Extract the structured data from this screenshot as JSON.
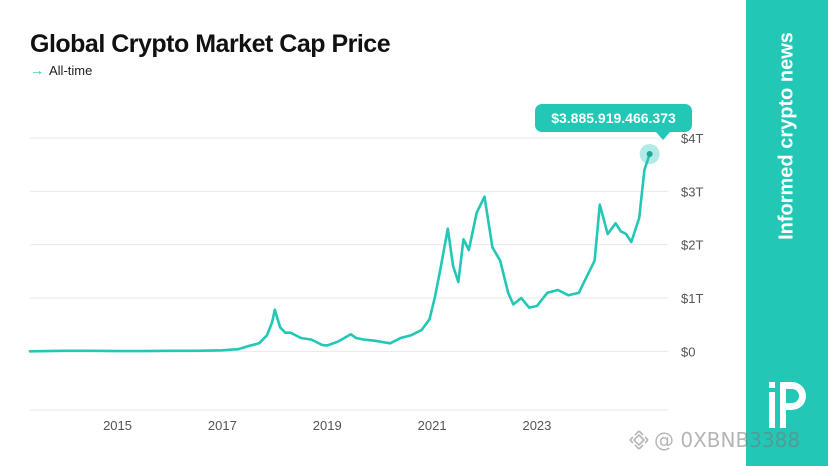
{
  "chart_data": {
    "type": "line",
    "title": "Global Crypto Market Cap Price",
    "subtitle": "All-time",
    "x_tick_labels": [
      "2015",
      "2017",
      "2019",
      "2021",
      "2023"
    ],
    "y_tick_labels": [
      "$0",
      "$1T",
      "$2T",
      "$3T",
      "$4T"
    ],
    "ylim": [
      -1.1,
      4.15
    ],
    "xlim": [
      2013.33,
      2025.5
    ],
    "grid": true,
    "last_value_label": "$3.885.919.466.373",
    "series": [
      {
        "color": "#22c7b5",
        "x": [
          2013.33,
          2014.0,
          2014.5,
          2015.0,
          2015.5,
          2016.0,
          2016.5,
          2017.0,
          2017.3,
          2017.5,
          2017.7,
          2017.85,
          2017.95,
          2018.0,
          2018.1,
          2018.2,
          2018.3,
          2018.5,
          2018.7,
          2018.9,
          2019.0,
          2019.2,
          2019.45,
          2019.55,
          2019.7,
          2019.9,
          2020.2,
          2020.4,
          2020.6,
          2020.8,
          2020.95,
          2021.05,
          2021.15,
          2021.3,
          2021.4,
          2021.5,
          2021.6,
          2021.7,
          2021.85,
          2022.0,
          2022.15,
          2022.3,
          2022.45,
          2022.55,
          2022.7,
          2022.85,
          2023.0,
          2023.2,
          2023.4,
          2023.6,
          2023.8,
          2023.95,
          2024.1,
          2024.2,
          2024.35,
          2024.5,
          2024.6,
          2024.7,
          2024.8,
          2024.95,
          2025.05,
          2025.15
        ],
        "y": [
          0.0,
          0.01,
          0.01,
          0.005,
          0.005,
          0.01,
          0.01,
          0.02,
          0.04,
          0.1,
          0.15,
          0.3,
          0.55,
          0.78,
          0.45,
          0.35,
          0.35,
          0.25,
          0.22,
          0.12,
          0.11,
          0.18,
          0.32,
          0.25,
          0.22,
          0.2,
          0.15,
          0.25,
          0.3,
          0.4,
          0.6,
          1.0,
          1.5,
          2.3,
          1.6,
          1.3,
          2.1,
          1.9,
          2.6,
          2.9,
          1.95,
          1.7,
          1.1,
          0.88,
          1.0,
          0.82,
          0.85,
          1.1,
          1.15,
          1.05,
          1.1,
          1.4,
          1.7,
          2.75,
          2.2,
          2.4,
          2.25,
          2.2,
          2.05,
          2.5,
          3.4,
          3.7
        ]
      }
    ]
  },
  "brand": {
    "tagline": "Informed crypto news",
    "accent": "#22c7b5"
  },
  "watermark": "@ 0XBNB3388"
}
